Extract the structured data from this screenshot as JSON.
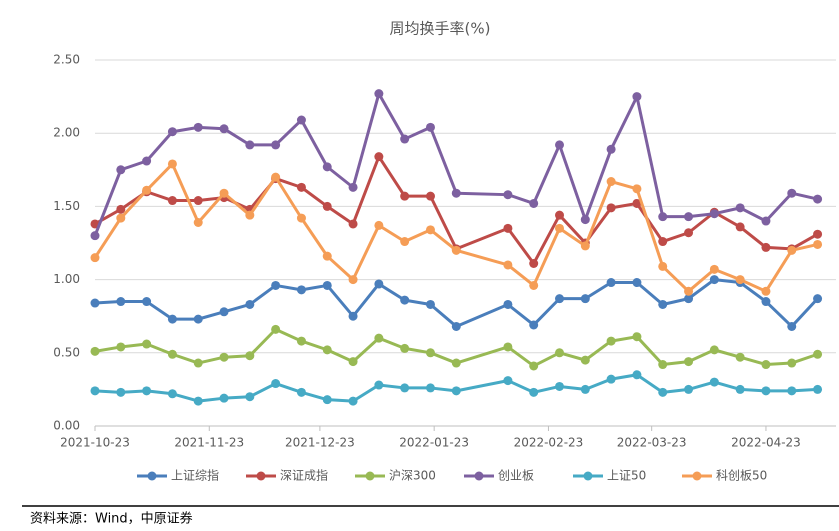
{
  "chart_data": {
    "type": "line",
    "title": "周均换手率(%)",
    "x": [
      "2021-10-23",
      "2021-10-30",
      "2021-11-06",
      "2021-11-13",
      "2021-11-20",
      "2021-11-27",
      "2021-12-04",
      "2021-12-11",
      "2021-12-18",
      "2021-12-25",
      "2022-01-01",
      "2022-01-08",
      "2022-01-15",
      "2022-01-22",
      "2022-01-29",
      "2022-02-12",
      "2022-02-19",
      "2022-02-26",
      "2022-03-05",
      "2022-03-12",
      "2022-03-19",
      "2022-03-26",
      "2022-04-02",
      "2022-04-09",
      "2022-04-16",
      "2022-04-23",
      "2022-04-30",
      "2022-05-07"
    ],
    "series": [
      {
        "name": "上证综指",
        "color": "#4a7ebb",
        "values": [
          0.84,
          0.85,
          0.85,
          0.73,
          0.73,
          0.78,
          0.83,
          0.96,
          0.93,
          0.96,
          0.75,
          0.97,
          0.86,
          0.83,
          0.68,
          0.83,
          0.69,
          0.87,
          0.87,
          0.98,
          0.98,
          0.83,
          0.87,
          1.0,
          0.98,
          0.85,
          0.68,
          0.87
        ]
      },
      {
        "name": "深证成指",
        "color": "#be4b48",
        "values": [
          1.38,
          1.48,
          1.6,
          1.54,
          1.54,
          1.56,
          1.48,
          1.69,
          1.63,
          1.5,
          1.38,
          1.84,
          1.57,
          1.57,
          1.21,
          1.35,
          1.11,
          1.44,
          1.25,
          1.49,
          1.52,
          1.26,
          1.32,
          1.46,
          1.36,
          1.22,
          1.21,
          1.31
        ]
      },
      {
        "name": "沪深300",
        "color": "#98b954",
        "values": [
          0.51,
          0.54,
          0.56,
          0.49,
          0.43,
          0.47,
          0.48,
          0.66,
          0.58,
          0.52,
          0.44,
          0.6,
          0.53,
          0.5,
          0.43,
          0.54,
          0.41,
          0.5,
          0.45,
          0.58,
          0.61,
          0.42,
          0.44,
          0.52,
          0.47,
          0.42,
          0.43,
          0.49
        ]
      },
      {
        "name": "创业板",
        "color": "#7d60a0",
        "values": [
          1.3,
          1.75,
          1.81,
          2.01,
          2.04,
          2.03,
          1.92,
          1.92,
          2.09,
          1.77,
          1.63,
          2.27,
          1.96,
          2.04,
          1.59,
          1.58,
          1.52,
          1.92,
          1.41,
          1.89,
          2.25,
          1.43,
          1.43,
          1.45,
          1.49,
          1.4,
          1.59,
          1.55
        ]
      },
      {
        "name": "上证50",
        "color": "#46aac5",
        "values": [
          0.24,
          0.23,
          0.24,
          0.22,
          0.17,
          0.19,
          0.2,
          0.29,
          0.23,
          0.18,
          0.17,
          0.28,
          0.26,
          0.26,
          0.24,
          0.31,
          0.23,
          0.27,
          0.25,
          0.32,
          0.35,
          0.23,
          0.25,
          0.3,
          0.25,
          0.24,
          0.24,
          0.25
        ]
      },
      {
        "name": "科创板50",
        "color": "#f59d56",
        "values": [
          1.15,
          1.42,
          1.61,
          1.79,
          1.39,
          1.59,
          1.44,
          1.7,
          1.42,
          1.16,
          1.0,
          1.37,
          1.26,
          1.34,
          1.2,
          1.1,
          0.96,
          1.35,
          1.23,
          1.67,
          1.62,
          1.09,
          0.92,
          1.07,
          1.0,
          0.92,
          1.2,
          1.24
        ]
      }
    ],
    "xlim": [
      "2021-10-23",
      "2022-05-12"
    ],
    "xticks": [
      "2021-10-23",
      "2021-11-23",
      "2021-12-23",
      "2022-01-23",
      "2022-02-23",
      "2022-03-23",
      "2022-04-23"
    ],
    "ylim": [
      0,
      2.5
    ],
    "yticks": [
      {
        "value": 0,
        "label": "0.00"
      },
      {
        "value": 0.5,
        "label": "0.50"
      },
      {
        "value": 1,
        "label": "1.00"
      },
      {
        "value": 1.5,
        "label": "1.50"
      },
      {
        "value": 2,
        "label": "2.00"
      },
      {
        "value": 2.5,
        "label": "2.50"
      }
    ],
    "grid": true,
    "legend": "bottom"
  },
  "source": "资料来源：Wind，中原证券"
}
